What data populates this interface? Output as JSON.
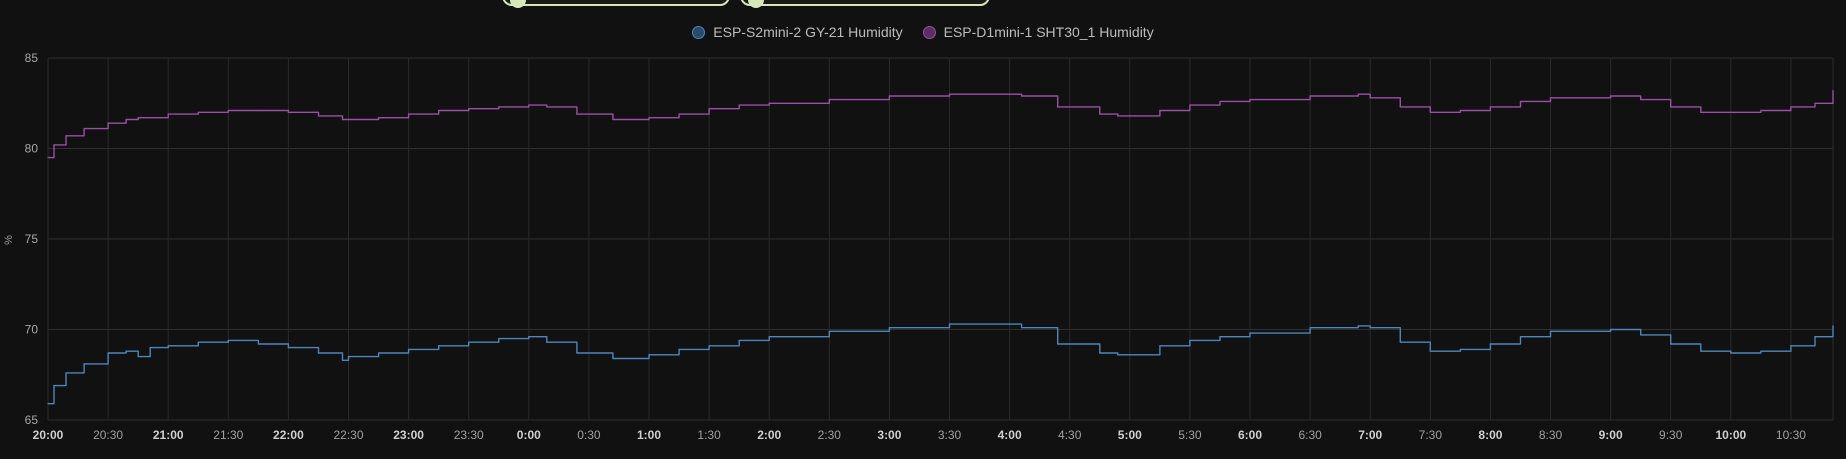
{
  "toolbar": {
    "chips": [
      {
        "label": ""
      },
      {
        "label": ""
      }
    ]
  },
  "legend": [
    {
      "label": "ESP-S2mini-2 GY-21 Humidity",
      "color": "#4c86bf",
      "fill": "#2a4a6c"
    },
    {
      "label": "ESP-D1mini-1 SHT30_1 Humidity",
      "color": "#9b4fa6",
      "fill": "#5a2e63"
    }
  ],
  "chart_data": {
    "type": "line",
    "ylabel": "%",
    "ylim": [
      65,
      85
    ],
    "yticks": [
      65,
      70,
      75,
      80,
      85
    ],
    "xlim_hours": [
      20,
      34.85
    ],
    "xticks": [
      {
        "label": "20:00",
        "bold": true
      },
      {
        "label": "20:30",
        "bold": false
      },
      {
        "label": "21:00",
        "bold": true
      },
      {
        "label": "21:30",
        "bold": false
      },
      {
        "label": "22:00",
        "bold": true
      },
      {
        "label": "22:30",
        "bold": false
      },
      {
        "label": "23:00",
        "bold": true
      },
      {
        "label": "23:30",
        "bold": false
      },
      {
        "label": "0:00",
        "bold": true
      },
      {
        "label": "0:30",
        "bold": false
      },
      {
        "label": "1:00",
        "bold": true
      },
      {
        "label": "1:30",
        "bold": false
      },
      {
        "label": "2:00",
        "bold": true
      },
      {
        "label": "2:30",
        "bold": false
      },
      {
        "label": "3:00",
        "bold": true
      },
      {
        "label": "3:30",
        "bold": false
      },
      {
        "label": "4:00",
        "bold": true
      },
      {
        "label": "4:30",
        "bold": false
      },
      {
        "label": "5:00",
        "bold": true
      },
      {
        "label": "5:30",
        "bold": false
      },
      {
        "label": "6:00",
        "bold": true
      },
      {
        "label": "6:30",
        "bold": false
      },
      {
        "label": "7:00",
        "bold": true
      },
      {
        "label": "7:30",
        "bold": false
      },
      {
        "label": "8:00",
        "bold": true
      },
      {
        "label": "8:30",
        "bold": false
      },
      {
        "label": "9:00",
        "bold": true
      },
      {
        "label": "9:30",
        "bold": false
      },
      {
        "label": "10:00",
        "bold": true
      },
      {
        "label": "10:30",
        "bold": false
      }
    ],
    "grid": true,
    "series": [
      {
        "name": "ESP-S2mini-2 GY-21 Humidity",
        "color": "#4c86bf",
        "x": [
          20.0,
          20.05,
          20.15,
          20.3,
          20.5,
          20.65,
          20.75,
          20.85,
          21.0,
          21.25,
          21.5,
          21.75,
          22.0,
          22.25,
          22.45,
          22.5,
          22.75,
          23.0,
          23.25,
          23.5,
          23.75,
          24.0,
          24.15,
          24.4,
          24.7,
          25.0,
          25.25,
          25.5,
          25.75,
          26.0,
          26.5,
          27.0,
          27.5,
          28.0,
          28.1,
          28.4,
          28.75,
          28.9,
          29.25,
          29.5,
          29.75,
          30.0,
          30.5,
          30.9,
          31.0,
          31.25,
          31.5,
          31.75,
          32.0,
          32.25,
          32.5,
          33.0,
          33.25,
          33.5,
          33.75,
          34.0,
          34.25,
          34.5,
          34.7,
          34.85
        ],
        "y": [
          65.9,
          66.9,
          67.6,
          68.1,
          68.7,
          68.8,
          68.5,
          69.0,
          69.1,
          69.3,
          69.4,
          69.2,
          69.0,
          68.7,
          68.3,
          68.5,
          68.7,
          68.9,
          69.1,
          69.3,
          69.5,
          69.6,
          69.3,
          68.7,
          68.4,
          68.6,
          68.9,
          69.1,
          69.4,
          69.6,
          69.9,
          70.1,
          70.3,
          70.3,
          70.1,
          69.2,
          68.7,
          68.6,
          69.1,
          69.4,
          69.6,
          69.8,
          70.1,
          70.2,
          70.1,
          69.3,
          68.8,
          68.9,
          69.2,
          69.6,
          69.9,
          70.0,
          69.7,
          69.2,
          68.8,
          68.7,
          68.8,
          69.1,
          69.6,
          70.2
        ]
      },
      {
        "name": "ESP-D1mini-1 SHT30_1 Humidity",
        "color": "#9b4fa6",
        "x": [
          20.0,
          20.05,
          20.15,
          20.3,
          20.5,
          20.65,
          20.75,
          21.0,
          21.25,
          21.5,
          21.75,
          22.0,
          22.25,
          22.45,
          22.75,
          23.0,
          23.25,
          23.5,
          23.75,
          24.0,
          24.15,
          24.4,
          24.7,
          25.0,
          25.25,
          25.5,
          25.75,
          26.0,
          26.5,
          27.0,
          27.5,
          28.0,
          28.1,
          28.4,
          28.75,
          28.9,
          29.25,
          29.5,
          29.75,
          30.0,
          30.5,
          30.9,
          31.0,
          31.25,
          31.5,
          31.75,
          32.0,
          32.25,
          32.5,
          33.0,
          33.25,
          33.5,
          33.75,
          34.0,
          34.25,
          34.5,
          34.7,
          34.85
        ],
        "y": [
          79.5,
          80.2,
          80.7,
          81.1,
          81.4,
          81.6,
          81.7,
          81.9,
          82.0,
          82.1,
          82.1,
          82.0,
          81.8,
          81.6,
          81.7,
          81.9,
          82.1,
          82.2,
          82.3,
          82.4,
          82.3,
          81.9,
          81.6,
          81.7,
          81.9,
          82.2,
          82.4,
          82.5,
          82.7,
          82.9,
          83.0,
          83.0,
          82.9,
          82.3,
          81.9,
          81.8,
          82.1,
          82.4,
          82.6,
          82.7,
          82.9,
          83.0,
          82.8,
          82.3,
          82.0,
          82.1,
          82.3,
          82.6,
          82.8,
          82.9,
          82.7,
          82.3,
          82.0,
          82.0,
          82.1,
          82.3,
          82.5,
          83.2
        ]
      }
    ]
  }
}
